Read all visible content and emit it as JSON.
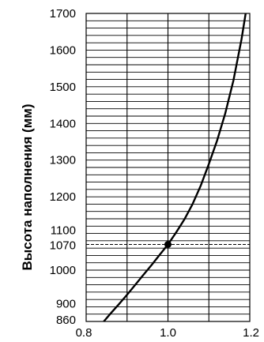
{
  "chart_data": {
    "type": "line",
    "title": "",
    "xlabel": "",
    "ylabel": "Высота наполнения (мм)",
    "xlim": [
      0.8,
      1.2
    ],
    "ylim": [
      860,
      1700
    ],
    "x_ticks": [
      {
        "value": 0.8,
        "label": "0.8"
      },
      {
        "value": 1.0,
        "label": "1.0"
      },
      {
        "value": 1.2,
        "label": "1.2"
      }
    ],
    "y_ticks": [
      {
        "value": 860,
        "label": "860"
      },
      {
        "value": 900,
        "label": "900"
      },
      {
        "value": 1000,
        "label": "1000"
      },
      {
        "value": 1070,
        "label": "1070"
      },
      {
        "value": 1100,
        "label": "1100"
      },
      {
        "value": 1200,
        "label": "1200"
      },
      {
        "value": 1300,
        "label": "1300"
      },
      {
        "value": 1400,
        "label": "1400"
      },
      {
        "value": 1500,
        "label": "1500"
      },
      {
        "value": 1600,
        "label": "1600"
      },
      {
        "value": 1700,
        "label": "1700"
      }
    ],
    "grid": true,
    "grid_x_step": 0.1,
    "grid_y_step": 20,
    "reference_line": {
      "y": 1070,
      "style": "dashed"
    },
    "marker_point": {
      "x": 1.0,
      "y": 1070
    },
    "series": [
      {
        "points": [
          {
            "x": 0.843,
            "y": 860
          },
          {
            "x": 0.86,
            "y": 882
          },
          {
            "x": 0.88,
            "y": 907
          },
          {
            "x": 0.9,
            "y": 933
          },
          {
            "x": 0.92,
            "y": 960
          },
          {
            "x": 0.94,
            "y": 987
          },
          {
            "x": 0.96,
            "y": 1014
          },
          {
            "x": 0.98,
            "y": 1042
          },
          {
            "x": 1.0,
            "y": 1070
          },
          {
            "x": 1.02,
            "y": 1103
          },
          {
            "x": 1.04,
            "y": 1138
          },
          {
            "x": 1.06,
            "y": 1180
          },
          {
            "x": 1.08,
            "y": 1230
          },
          {
            "x": 1.1,
            "y": 1290
          },
          {
            "x": 1.12,
            "y": 1353
          },
          {
            "x": 1.14,
            "y": 1427
          },
          {
            "x": 1.16,
            "y": 1517
          },
          {
            "x": 1.18,
            "y": 1630
          },
          {
            "x": 1.19,
            "y": 1700
          }
        ]
      }
    ]
  }
}
